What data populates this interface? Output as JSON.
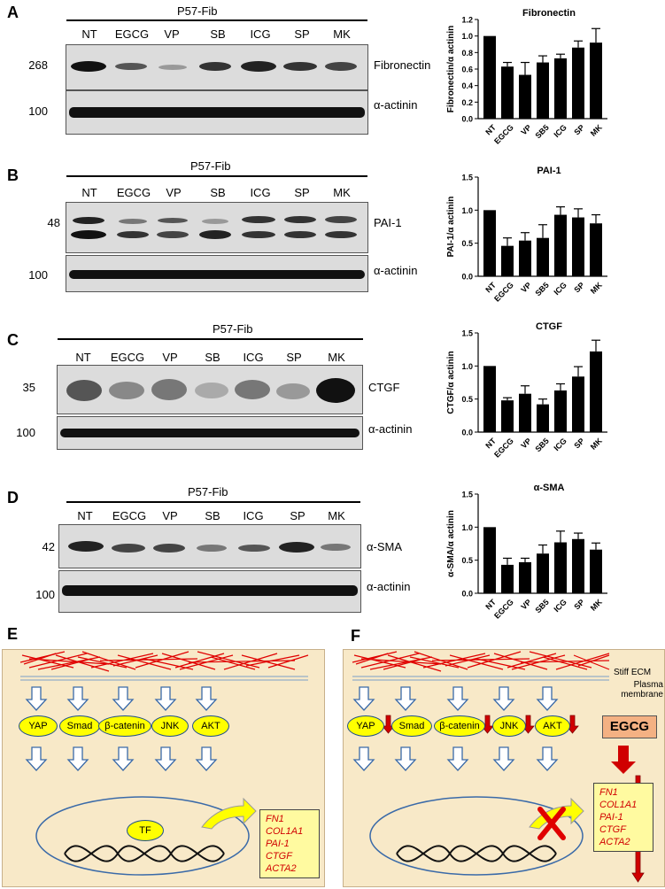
{
  "panels": {
    "A": {
      "letter": "A",
      "title": "P57-Fib",
      "lanes": [
        "NT",
        "EGCG",
        "VP",
        "SB",
        "ICG",
        "SP",
        "MK"
      ],
      "blots": [
        {
          "mw": "268",
          "label": "Fibronectin"
        },
        {
          "mw": "100",
          "label": "α-actinin"
        }
      ]
    },
    "B": {
      "letter": "B",
      "title": "P57-Fib",
      "lanes": [
        "NT",
        "EGCG",
        "VP",
        "SB",
        "ICG",
        "SP",
        "MK"
      ],
      "blots": [
        {
          "mw": "48",
          "label": "PAI-1"
        },
        {
          "mw": "100",
          "label": "α-actinin"
        }
      ]
    },
    "C": {
      "letter": "C",
      "title": "P57-Fib",
      "lanes": [
        "NT",
        "EGCG",
        "VP",
        "SB",
        "ICG",
        "SP",
        "MK"
      ],
      "blots": [
        {
          "mw": "35",
          "label": "CTGF"
        },
        {
          "mw": "100",
          "label": "α-actinin"
        }
      ]
    },
    "D": {
      "letter": "D",
      "title": "P57-Fib",
      "lanes": [
        "NT",
        "EGCG",
        "VP",
        "SB",
        "ICG",
        "SP",
        "MK"
      ],
      "blots": [
        {
          "mw": "42",
          "label": "α-SMA"
        },
        {
          "mw": "100",
          "label": "α-actinin"
        }
      ]
    },
    "E": {
      "letter": "E",
      "signals": [
        "YAP",
        "Smad",
        "β-catenin",
        "JNK",
        "AKT"
      ],
      "tf": "TF",
      "genes": [
        "FN1",
        "COL1A1",
        "PAI-1",
        "CTGF",
        "ACTA2"
      ]
    },
    "F": {
      "letter": "F",
      "signals": [
        "YAP",
        "Smad",
        "β-catenin",
        "JNK",
        "AKT"
      ],
      "genes": [
        "FN1",
        "COL1A1",
        "PAI-1",
        "CTGF",
        "ACTA2"
      ],
      "ecm_label": "Stiff ECM",
      "membrane_label": "Plasma membrane",
      "drug": "EGCG"
    }
  },
  "chart_data": [
    {
      "type": "bar",
      "title": "Fibronectin",
      "ylabel": "Fibronectin/α actinin",
      "categories": [
        "NT",
        "EGCG",
        "VP",
        "SB5",
        "ICG",
        "SP",
        "MK"
      ],
      "values": [
        1.0,
        0.63,
        0.53,
        0.68,
        0.73,
        0.86,
        0.92
      ],
      "errors": [
        0,
        0.05,
        0.15,
        0.08,
        0.05,
        0.08,
        0.17
      ],
      "ylim": [
        0,
        1.2
      ],
      "yticks": [
        "0.0",
        "0.2",
        "0.4",
        "0.6",
        "0.8",
        "1.0",
        "1.2"
      ],
      "tickvals": [
        0,
        0.2,
        0.4,
        0.6,
        0.8,
        1.0,
        1.2
      ]
    },
    {
      "type": "bar",
      "title": "PAI-1",
      "ylabel": "PAI-1/α actinin",
      "categories": [
        "NT",
        "EGCG",
        "VP",
        "SB5",
        "ICG",
        "SP",
        "MK"
      ],
      "values": [
        1.0,
        0.46,
        0.54,
        0.58,
        0.93,
        0.89,
        0.8
      ],
      "errors": [
        0,
        0.12,
        0.12,
        0.2,
        0.12,
        0.13,
        0.13
      ],
      "ylim": [
        0,
        1.5
      ],
      "yticks": [
        "0.0",
        "0.5",
        "1.0",
        "1.5"
      ],
      "tickvals": [
        0,
        0.5,
        1.0,
        1.5
      ]
    },
    {
      "type": "bar",
      "title": "CTGF",
      "ylabel": "CTGF/α actinin",
      "categories": [
        "NT",
        "EGCG",
        "VP",
        "SB5",
        "ICG",
        "SP",
        "MK"
      ],
      "values": [
        1.0,
        0.48,
        0.58,
        0.42,
        0.63,
        0.84,
        1.22
      ],
      "errors": [
        0,
        0.04,
        0.12,
        0.08,
        0.1,
        0.15,
        0.17
      ],
      "ylim": [
        0,
        1.5
      ],
      "yticks": [
        "0.0",
        "0.5",
        "1.0",
        "1.5"
      ],
      "tickvals": [
        0,
        0.5,
        1.0,
        1.5
      ]
    },
    {
      "type": "bar",
      "title": "α-SMA",
      "ylabel": "α-SMA/α actinin",
      "categories": [
        "NT",
        "EGCG",
        "VP",
        "SB5",
        "ICG",
        "SP",
        "MK"
      ],
      "values": [
        1.0,
        0.43,
        0.47,
        0.6,
        0.77,
        0.82,
        0.66
      ],
      "errors": [
        0,
        0.1,
        0.06,
        0.13,
        0.17,
        0.09,
        0.1
      ],
      "ylim": [
        0,
        1.5
      ],
      "yticks": [
        "0.0",
        "0.5",
        "1.0",
        "1.5"
      ],
      "tickvals": [
        0,
        0.5,
        1.0,
        1.5
      ]
    }
  ]
}
